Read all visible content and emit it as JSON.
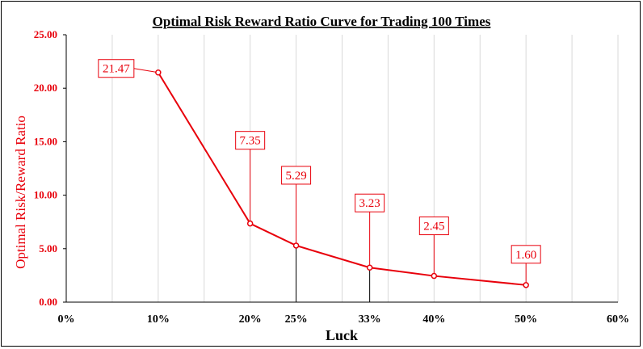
{
  "chart_data": {
    "type": "line",
    "title": "Optimal Risk Reward Ratio Curve for Trading 100 Times",
    "xlabel": "Luck",
    "ylabel": "Optimal Risk/Reward Ratio",
    "xlim": [
      0,
      60
    ],
    "ylim": [
      0,
      25
    ],
    "x_ticks": [
      {
        "v": 0,
        "label": "0%"
      },
      {
        "v": 10,
        "label": "10%"
      },
      {
        "v": 20,
        "label": "20%"
      },
      {
        "v": 25,
        "label": "25%"
      },
      {
        "v": 33,
        "label": "33%"
      },
      {
        "v": 40,
        "label": "40%"
      },
      {
        "v": 50,
        "label": "50%"
      },
      {
        "v": 60,
        "label": "60%"
      }
    ],
    "y_ticks": [
      "0.00",
      "5.00",
      "10.00",
      "15.00",
      "20.00",
      "25.00"
    ],
    "points": [
      {
        "x": 10,
        "y": 21.47,
        "label": "21.47"
      },
      {
        "x": 20,
        "y": 7.35,
        "label": "7.35"
      },
      {
        "x": 25,
        "y": 5.29,
        "label": "5.29"
      },
      {
        "x": 33,
        "y": 3.23,
        "label": "3.23"
      },
      {
        "x": 40,
        "y": 2.45,
        "label": "2.45"
      },
      {
        "x": 50,
        "y": 1.6,
        "label": "1.60"
      }
    ],
    "line_color": "#e8000b",
    "axis_text_color": "#e8000b",
    "grid": true
  }
}
